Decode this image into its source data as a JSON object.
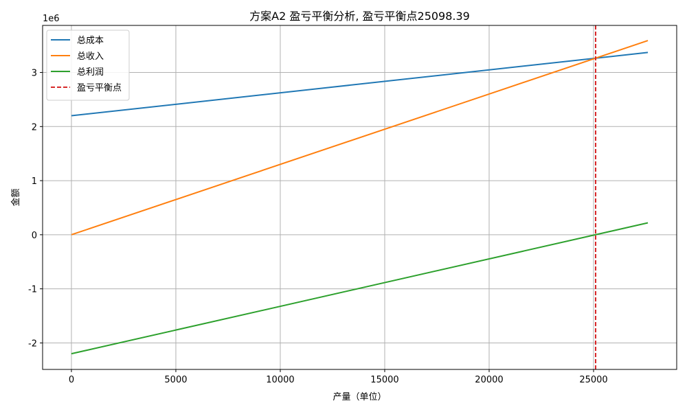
{
  "chart_data": {
    "type": "line",
    "title": "方案A2 盈亏平衡分析, 盈亏平衡点25098.39",
    "xlabel": "产量（单位）",
    "ylabel": "金额",
    "y_scale_label": "1e6",
    "xlim": [
      -1380,
      28980
    ],
    "ylim": [
      -2.49,
      3.87
    ],
    "x_ticks": [
      0,
      5000,
      10000,
      15000,
      20000,
      25000
    ],
    "x_tick_labels": [
      "0",
      "5000",
      "10000",
      "15000",
      "20000",
      "25000"
    ],
    "y_ticks": [
      -2,
      -1,
      0,
      1,
      2,
      3
    ],
    "y_tick_labels": [
      "-2",
      "-1",
      "0",
      "1",
      "2",
      "3"
    ],
    "grid": true,
    "legend_position": "top-left",
    "series": [
      {
        "name": "总成本",
        "color": "#1f77b4",
        "style": "solid",
        "x": [
          0,
          27600
        ],
        "y": [
          2.2,
          3.37
        ]
      },
      {
        "name": "总收入",
        "color": "#ff7f0e",
        "style": "solid",
        "x": [
          0,
          27600
        ],
        "y": [
          0.0,
          3.59
        ]
      },
      {
        "name": "总利润",
        "color": "#2ca02c",
        "style": "solid",
        "x": [
          0,
          27600
        ],
        "y": [
          -2.2,
          0.22
        ]
      }
    ],
    "vline": {
      "name": "盈亏平衡点",
      "x": 25098.39,
      "color": "#d62728",
      "style": "dashed"
    }
  }
}
